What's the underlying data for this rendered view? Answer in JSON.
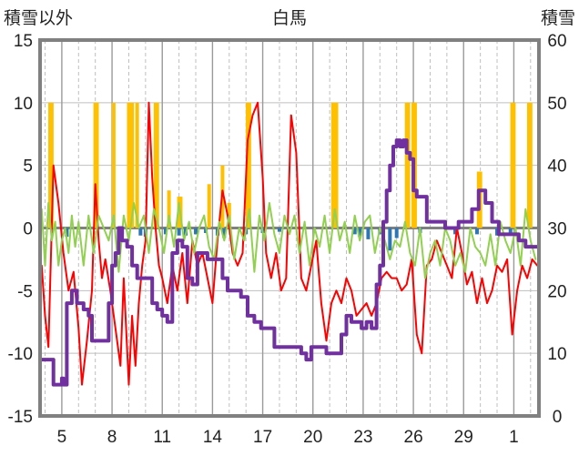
{
  "chart_data": {
    "type": "line",
    "title": "白馬",
    "left_axis_label": "積雪以外",
    "right_axis_label": "積雪",
    "ylim_left": [
      -15,
      15
    ],
    "ylim_right": [
      0,
      60
    ],
    "y_ticks_left": [
      "15",
      "10",
      "5",
      "0",
      "-5",
      "-10",
      "-15"
    ],
    "y_ticks_right": [
      "60",
      "50",
      "40",
      "30",
      "20",
      "10",
      "0"
    ],
    "x_ticks": [
      "5",
      "8",
      "11",
      "14",
      "17",
      "20",
      "23",
      "26",
      "29",
      "1"
    ],
    "x_range": [
      3.7,
      33.5
    ],
    "grid": true,
    "colors": {
      "frame": "#808080",
      "grid": "#bfbfbf",
      "zero_line": "#808080",
      "precip_bars": "#ffc000",
      "sunshine_bars": "#2e75b6",
      "temperature": "#ff0000",
      "wind": "#92d050",
      "snow_depth": "#7030a0"
    },
    "series": [
      {
        "key": "precip",
        "kind": "bar",
        "axis": "left",
        "color": "#ffc000",
        "x": [
          4.3,
          4.4,
          7.0,
          7.1,
          8.1,
          9.0,
          9.1,
          9.2,
          9.5,
          10.6,
          10.7,
          11.4,
          12.0,
          12.1,
          13.8,
          14.6,
          15.0,
          16.1,
          16.2,
          21.2,
          21.3,
          21.4,
          25.6,
          25.7,
          26.0,
          26.1,
          29.9,
          30.0,
          31.9,
          32.0,
          32.9,
          33.0
        ],
        "values": [
          10.0,
          10.0,
          10.0,
          10.0,
          10.0,
          10.0,
          10.0,
          10.0,
          10.0,
          10.0,
          10.0,
          3.0,
          2.5,
          2.5,
          3.5,
          5.0,
          2.0,
          10.0,
          10.0,
          10.0,
          10.0,
          10.0,
          10.0,
          10.0,
          10.0,
          10.0,
          4.5,
          4.5,
          10.0,
          10.0,
          10.0,
          10.0
        ]
      },
      {
        "key": "sunshine",
        "kind": "bar",
        "axis": "left",
        "color": "#2e75b6",
        "x": [
          5.3,
          8.6,
          9.7,
          10.0,
          11.2,
          12.0,
          12.4,
          13.0,
          13.6,
          14.3,
          14.7,
          16.0,
          17.0,
          18.0,
          22.5,
          22.8,
          23.3,
          24.0,
          24.6,
          25.0,
          26.4,
          28.5,
          29.8,
          31.0,
          31.8
        ],
        "values": [
          -0.7,
          -0.5,
          -0.6,
          -0.7,
          -0.5,
          -0.6,
          -0.6,
          -0.5,
          -0.4,
          -0.6,
          -0.8,
          -0.5,
          -0.4,
          -0.3,
          -0.5,
          -0.7,
          -0.9,
          -0.5,
          -1.8,
          -0.8,
          -0.4,
          -0.5,
          -0.5,
          -0.6,
          -0.4
        ]
      },
      {
        "key": "temperature",
        "kind": "line",
        "axis": "left",
        "color": "#ff0000",
        "width": 2,
        "x": [
          3.8,
          4.0,
          4.2,
          4.5,
          4.8,
          5.1,
          5.4,
          5.7,
          6.0,
          6.2,
          6.5,
          6.8,
          7.0,
          7.2,
          7.4,
          7.6,
          7.9,
          8.2,
          8.5,
          8.7,
          9.0,
          9.2,
          9.4,
          9.6,
          9.8,
          10.0,
          10.2,
          10.4,
          10.6,
          10.8,
          11.0,
          11.3,
          11.6,
          11.9,
          12.2,
          12.5,
          12.8,
          13.1,
          13.4,
          13.7,
          14.0,
          14.3,
          14.6,
          14.9,
          15.2,
          15.5,
          15.8,
          16.1,
          16.4,
          16.7,
          17.0,
          17.2,
          17.5,
          17.8,
          18.1,
          18.4,
          18.7,
          19.0,
          19.3,
          19.6,
          19.9,
          20.2,
          20.5,
          20.8,
          21.1,
          21.4,
          21.7,
          22.0,
          22.3,
          22.6,
          22.9,
          23.2,
          23.5,
          23.8,
          24.1,
          24.4,
          24.7,
          25.0,
          25.3,
          25.6,
          25.9,
          26.2,
          26.5,
          26.8,
          27.1,
          27.4,
          27.7,
          28.0,
          28.3,
          28.6,
          28.9,
          29.2,
          29.5,
          29.8,
          30.1,
          30.4,
          30.7,
          31.0,
          31.3,
          31.6,
          31.9,
          32.2,
          32.5,
          32.8,
          33.1,
          33.4
        ],
        "values": [
          -3.0,
          -7.0,
          -9.5,
          5.0,
          2.0,
          -2.0,
          -5.0,
          -3.5,
          -8.0,
          -12.5,
          -9.0,
          -5.0,
          3.5,
          -1.0,
          -4.0,
          -2.5,
          -5.0,
          -8.0,
          -11.0,
          -4.0,
          -12.5,
          -7.0,
          -11.0,
          -6.0,
          -3.0,
          -1.0,
          10.0,
          4.0,
          0.0,
          -3.0,
          -4.0,
          -6.0,
          -3.0,
          -5.0,
          -2.0,
          -6.0,
          -1.0,
          -3.0,
          -2.0,
          -4.0,
          -6.0,
          -1.0,
          3.0,
          1.0,
          -2.0,
          -3.0,
          -2.0,
          7.0,
          9.0,
          10.0,
          4.0,
          -2.0,
          -4.0,
          -2.0,
          -5.0,
          -4.0,
          9.0,
          6.0,
          -4.0,
          -5.0,
          -3.0,
          -1.0,
          -6.0,
          -9.0,
          -6.0,
          -5.0,
          -6.0,
          -4.0,
          -5.0,
          -7.0,
          -6.5,
          -6.0,
          -7.0,
          -6.0,
          -4.0,
          -3.5,
          -4.0,
          -4.0,
          -5.0,
          -4.5,
          -2.5,
          -8.5,
          -10.0,
          -3.0,
          -2.5,
          -1.0,
          -2.0,
          -3.0,
          -4.0,
          0.0,
          -2.0,
          -4.5,
          -3.5,
          -6.0,
          -4.0,
          -6.0,
          -5.0,
          -3.0,
          -3.5,
          -2.5,
          -8.5,
          -5.0,
          -3.0,
          -4.0,
          -2.5,
          -3.0
        ]
      },
      {
        "key": "wind",
        "kind": "line",
        "axis": "left",
        "color": "#92d050",
        "width": 2,
        "x": [
          3.8,
          4.0,
          4.2,
          4.4,
          4.6,
          4.8,
          5.0,
          5.2,
          5.4,
          5.6,
          5.8,
          6.0,
          6.3,
          6.6,
          6.9,
          7.2,
          7.5,
          7.8,
          8.1,
          8.4,
          8.7,
          9.0,
          9.3,
          9.6,
          9.9,
          10.2,
          10.5,
          10.8,
          11.1,
          11.4,
          11.7,
          12.0,
          12.3,
          12.6,
          12.9,
          13.2,
          13.5,
          13.8,
          14.1,
          14.4,
          14.7,
          15.0,
          15.3,
          15.6,
          15.9,
          16.2,
          16.5,
          16.8,
          17.1,
          17.4,
          17.7,
          18.0,
          18.3,
          18.6,
          18.9,
          19.2,
          19.5,
          19.8,
          20.1,
          20.4,
          20.7,
          21.0,
          21.3,
          21.6,
          21.9,
          22.2,
          22.5,
          22.8,
          23.1,
          23.4,
          23.7,
          24.0,
          24.3,
          24.6,
          24.9,
          25.2,
          25.5,
          25.8,
          26.1,
          26.4,
          26.7,
          27.0,
          27.3,
          27.6,
          27.9,
          28.2,
          28.5,
          28.8,
          29.1,
          29.4,
          29.7,
          30.0,
          30.3,
          30.6,
          30.9,
          31.2,
          31.5,
          31.8,
          32.1,
          32.4,
          32.7,
          33.0,
          33.3
        ],
        "values": [
          1.5,
          -3.0,
          2.0,
          -1.0,
          0.5,
          -3.0,
          -1.0,
          0.0,
          -2.0,
          1.0,
          -1.5,
          0.5,
          -3.0,
          1.0,
          -2.0,
          1.0,
          0.0,
          -1.0,
          1.0,
          -3.5,
          1.0,
          -1.0,
          2.0,
          0.0,
          1.0,
          -2.0,
          1.5,
          0.0,
          -2.0,
          1.0,
          -1.5,
          2.0,
          -1.0,
          0.5,
          -2.0,
          0.0,
          1.0,
          -1.5,
          -2.5,
          0.5,
          -1.0,
          1.0,
          -2.5,
          0.0,
          -1.0,
          1.5,
          -3.5,
          1.0,
          -1.0,
          2.0,
          -0.5,
          -2.0,
          1.0,
          -0.5,
          1.0,
          -2.0,
          0.5,
          -3.0,
          0.0,
          -1.5,
          1.0,
          -2.0,
          1.5,
          -1.0,
          0.5,
          -2.0,
          1.0,
          -1.0,
          0.5,
          1.0,
          -2.0,
          0.0,
          -1.0,
          -2.5,
          -1.0,
          -1.5,
          0.5,
          -2.0,
          -3.0,
          0.0,
          -4.0,
          -2.0,
          -1.0,
          -3.0,
          0.0,
          -1.0,
          -3.0,
          -2.0,
          -3.5,
          0.0,
          -1.5,
          -2.0,
          -3.0,
          -0.5,
          -3.0,
          0.5,
          -1.0,
          -2.0,
          0.0,
          -3.0,
          1.5,
          -1.0,
          -2.5
        ]
      },
      {
        "key": "snow_depth",
        "kind": "step",
        "axis": "right",
        "color": "#7030a0",
        "width": 4,
        "x": [
          3.8,
          4.3,
          4.5,
          4.7,
          5.0,
          5.1,
          5.3,
          5.6,
          5.9,
          6.3,
          6.6,
          6.8,
          7.0,
          7.2,
          7.5,
          7.8,
          8.0,
          8.2,
          8.4,
          8.6,
          8.9,
          9.2,
          9.5,
          9.8,
          10.1,
          10.4,
          10.7,
          11.0,
          11.3,
          11.6,
          11.9,
          12.2,
          12.5,
          12.8,
          13.1,
          13.4,
          13.7,
          14.0,
          14.3,
          14.6,
          14.9,
          15.3,
          15.7,
          16.1,
          16.5,
          16.9,
          17.3,
          17.7,
          18.1,
          18.5,
          18.9,
          19.1,
          19.3,
          19.6,
          19.9,
          20.2,
          20.5,
          20.8,
          21.1,
          21.4,
          21.7,
          22.0,
          22.3,
          22.6,
          22.9,
          23.2,
          23.5,
          23.8,
          24.0,
          24.2,
          24.4,
          24.6,
          24.8,
          25.0,
          25.2,
          25.4,
          25.6,
          25.8,
          26.0,
          26.2,
          26.5,
          26.8,
          27.1,
          27.5,
          27.9,
          28.3,
          28.7,
          29.1,
          29.5,
          29.9,
          30.3,
          30.7,
          31.1,
          31.5,
          31.9,
          32.3,
          32.7,
          33.1,
          33.4
        ],
        "values": [
          9.0,
          9.0,
          5.0,
          5.0,
          6.0,
          5.0,
          18.0,
          20.0,
          18.0,
          17.0,
          16.0,
          12.0,
          12.0,
          12.0,
          12.0,
          18.0,
          24.0,
          26.0,
          30.0,
          28.0,
          27.0,
          24.0,
          22.0,
          22.0,
          22.0,
          18.0,
          17.0,
          16.0,
          15.0,
          26.0,
          28.0,
          27.0,
          22.0,
          21.0,
          26.0,
          26.0,
          25.0,
          25.0,
          25.0,
          22.0,
          20.0,
          20.0,
          19.0,
          16.0,
          15.0,
          14.0,
          14.0,
          11.0,
          11.0,
          11.0,
          11.0,
          11.0,
          10.0,
          9.0,
          11.0,
          11.0,
          11.0,
          10.0,
          10.0,
          10.0,
          13.0,
          16.0,
          15.0,
          15.0,
          14.0,
          15.0,
          14.0,
          21.0,
          24.0,
          31.0,
          36.0,
          40.0,
          43.0,
          44.0,
          43.0,
          44.0,
          42.0,
          41.0,
          36.0,
          35.0,
          35.0,
          31.0,
          31.0,
          31.0,
          30.0,
          30.0,
          31.0,
          31.0,
          33.0,
          36.0,
          34.0,
          31.0,
          29.0,
          29.0,
          29.0,
          28.0,
          27.0,
          27.0,
          27.0
        ]
      }
    ]
  }
}
